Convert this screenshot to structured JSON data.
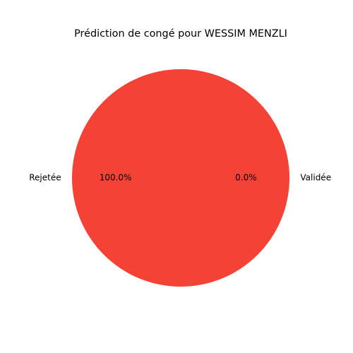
{
  "chart_data": {
    "type": "pie",
    "title": "Prédiction de congé pour WESSIM MENZLI",
    "slices": [
      {
        "label": "Validée",
        "value": 0.0,
        "percent_label": "0.0%",
        "color": "#2ecc71"
      },
      {
        "label": "Rejetée",
        "value": 100.0,
        "percent_label": "100.0%",
        "color": "#f44336"
      }
    ],
    "start_angle_deg": 0,
    "legend": "none"
  }
}
